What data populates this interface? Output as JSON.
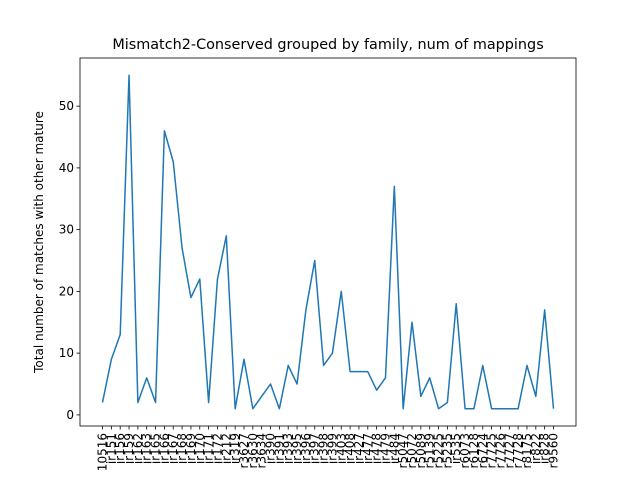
{
  "chart_data": {
    "type": "line",
    "title": "Mismatch2-Conserved grouped by family, num of mappings",
    "y_label": "Total number of matches with other mature",
    "categories": [
      "10516",
      "ir151",
      "ir156",
      "ir159",
      "ir162",
      "ir163",
      "ir165",
      "ir166",
      "ir167",
      "ir168",
      "ir169",
      "ir170",
      "ir171",
      "ir172",
      "ir212",
      "ir319",
      "r3627",
      "r3630",
      "r3634",
      "ir390",
      "ir391",
      "ir393",
      "ir395",
      "ir396",
      "ir397",
      "ir398",
      "ir399",
      "ir403",
      "ir408",
      "ir427",
      "ir477",
      "ir478",
      "ir479",
      "ir484",
      "r5047",
      "r5072",
      "r5089",
      "r5139",
      "r5225",
      "r5235",
      "ir535",
      "r6073",
      "r6128",
      "r6724",
      "r7725",
      "r7726",
      "r7727",
      "r7728",
      "r8175",
      "ir822",
      "ir828",
      "r9560"
    ],
    "values": [
      2,
      9,
      13,
      55,
      2,
      6,
      2,
      46,
      41,
      27,
      19,
      22,
      2,
      22,
      29,
      1,
      9,
      1,
      3,
      5,
      1,
      8,
      5,
      17,
      25,
      8,
      10,
      20,
      7,
      7,
      7,
      4,
      6,
      37,
      1,
      15,
      3,
      6,
      1,
      2,
      18,
      1,
      1,
      8,
      1,
      1,
      1,
      1,
      8,
      3,
      17,
      1
    ],
    "color": "#1f77b4",
    "ylim": [
      -1.8,
      57.8
    ],
    "yticks": [
      0,
      10,
      20,
      30,
      40,
      50
    ]
  }
}
